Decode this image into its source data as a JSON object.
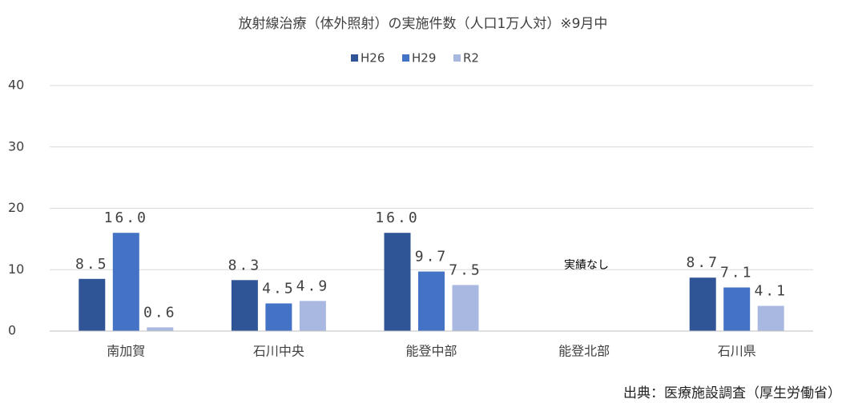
{
  "chart_data": {
    "type": "bar",
    "title": "放射線治療（体外照射）の実施件数（人口1万人対）※9月中",
    "categories": [
      "南加賀",
      "石川中央",
      "能登中部",
      "能登北部",
      "石川県"
    ],
    "series": [
      {
        "name": "H26",
        "color": "#2f5597",
        "values": [
          8.5,
          8.3,
          16.0,
          null,
          8.7
        ],
        "value_labels": [
          "8.5",
          "8.3",
          "16.0",
          null,
          "8.7"
        ]
      },
      {
        "name": "H29",
        "color": "#4472c4",
        "values": [
          16.0,
          4.5,
          9.7,
          null,
          7.1
        ],
        "value_labels": [
          "16.0",
          "4.5",
          "9.7",
          null,
          "7.1"
        ]
      },
      {
        "name": "R2",
        "color": "#a9b8e0",
        "values": [
          0.6,
          4.9,
          7.5,
          null,
          4.1
        ],
        "value_labels": [
          "0.6",
          "4.9",
          "7.5",
          null,
          "4.1"
        ]
      }
    ],
    "ylim": [
      0,
      40
    ],
    "yticks": [
      0,
      10,
      20,
      30,
      40
    ],
    "grid": true,
    "legend": "top",
    "annotation": "実績なし",
    "source": "出典：医療施設調査（厚生労働省）"
  }
}
